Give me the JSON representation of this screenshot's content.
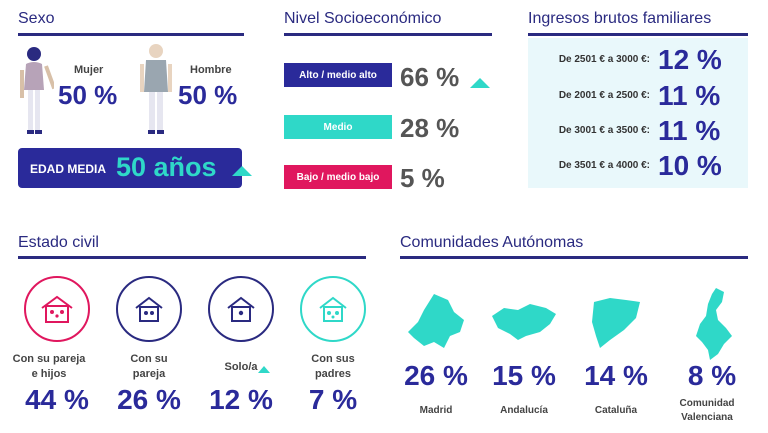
{
  "sexo": {
    "title": "Sexo",
    "female_label": "Mujer",
    "female_value": "50 %",
    "male_label": "Hombre",
    "male_value": "50 %",
    "edad_label": "EDAD MEDIA",
    "edad_value": "50 años"
  },
  "nivel": {
    "title": "Nivel Socioeconómico",
    "items": [
      {
        "label": "Alto / medio alto",
        "value": "66 %",
        "color": "#2a2a9a"
      },
      {
        "label": "Medio",
        "value": "28 %",
        "color": "#2fd8c8"
      },
      {
        "label": "Bajo / medio bajo",
        "value": "5 %",
        "color": "#e0175e"
      }
    ]
  },
  "ingresos": {
    "title": "Ingresos brutos familiares",
    "items": [
      {
        "label": "De 2501 € a 3000 €:",
        "value": "12 %"
      },
      {
        "label": "De 2001 € a 2500 €:",
        "value": "11 %"
      },
      {
        "label": "De 3001 € a 3500 €:",
        "value": "11 %"
      },
      {
        "label": "De 3501 € a 4000 €:",
        "value": "10 %"
      }
    ]
  },
  "civil": {
    "title": "Estado civil",
    "items": [
      {
        "label": "Con su pareja e hijos",
        "value": "44 %",
        "color": "#e0175e"
      },
      {
        "label": "Con su pareja",
        "value": "26 %",
        "color": "#2a2a80"
      },
      {
        "label": "Solo/a",
        "value": "12 %",
        "color": "#2a2a80"
      },
      {
        "label": "Con sus padres",
        "value": "7 %",
        "color": "#2fd8c8"
      }
    ]
  },
  "comunidades": {
    "title": "Comunidades Autónomas",
    "items": [
      {
        "label": "Madrid",
        "value": "26 %"
      },
      {
        "label": "Andalucía",
        "value": "15 %"
      },
      {
        "label": "Cataluña",
        "value": "14 %"
      },
      {
        "label": "Comunidad Valenciana",
        "value": "8 %"
      }
    ]
  },
  "colors": {
    "navy": "#2a2a80",
    "teal": "#2fd8c8",
    "pink": "#e0175e",
    "panel": "#e9f8fb"
  }
}
